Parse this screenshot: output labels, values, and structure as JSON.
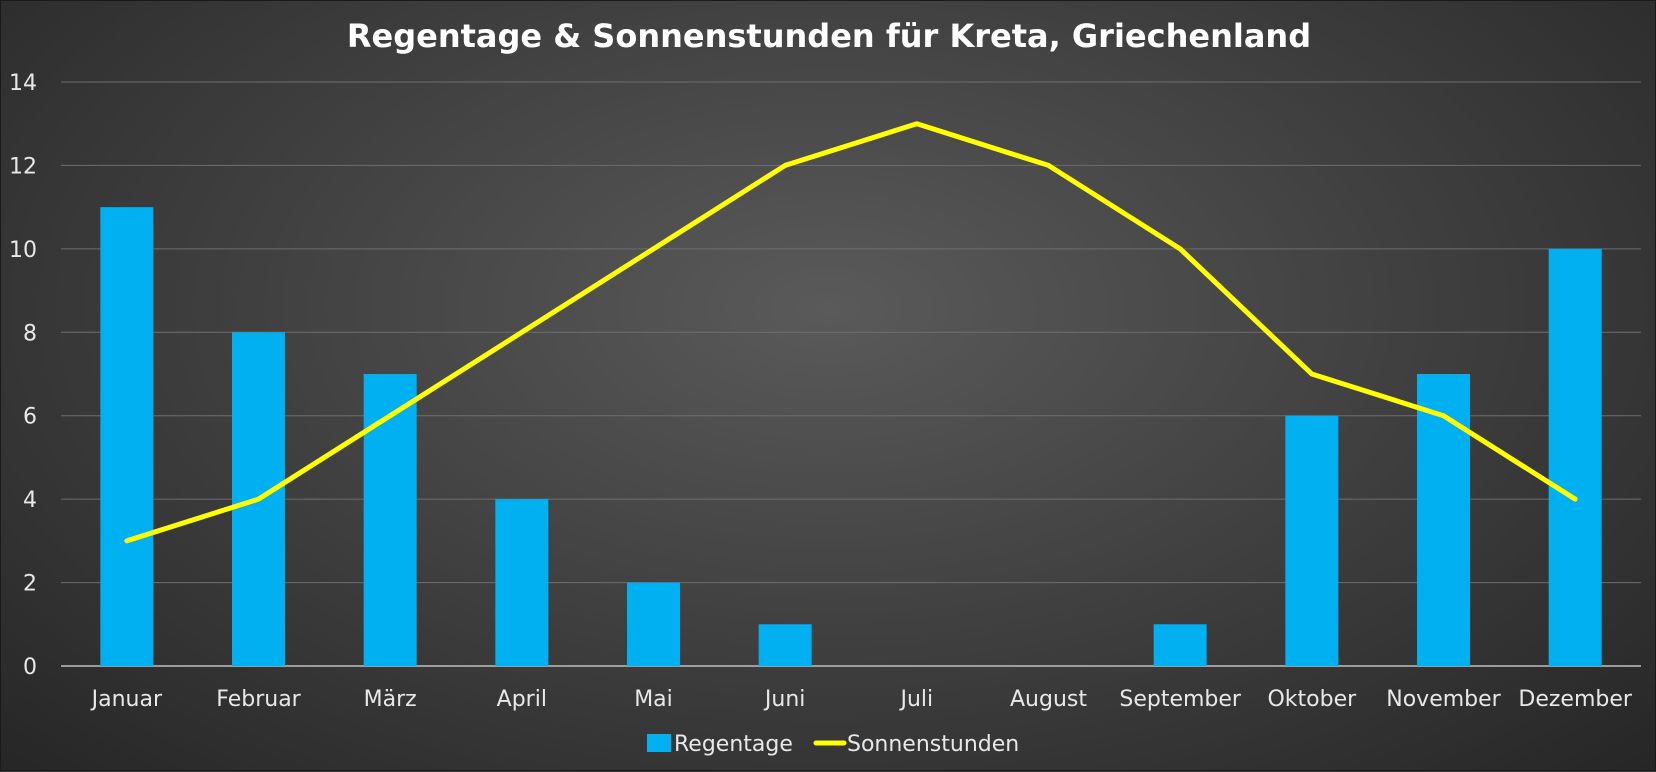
{
  "chart_data": {
    "type": "bar",
    "title": "Regentage & Sonnenstunden für Kreta, Griechenland",
    "categories": [
      "Januar",
      "Februar",
      "März",
      "April",
      "Mai",
      "Juni",
      "Juli",
      "August",
      "September",
      "Oktober",
      "November",
      "Dezember"
    ],
    "series": [
      {
        "name": "Regentage",
        "type": "bar",
        "color": "#00b0f0",
        "values": [
          11,
          8,
          7,
          4,
          2,
          1,
          0,
          0,
          1,
          6,
          7,
          10
        ]
      },
      {
        "name": "Sonnenstunden",
        "type": "line",
        "color": "#ffff00",
        "values": [
          3,
          4,
          6,
          8,
          10,
          12,
          13,
          12,
          10,
          7,
          6,
          4
        ]
      }
    ],
    "ylim": [
      0,
      14
    ],
    "yticks": [
      0,
      2,
      4,
      6,
      8,
      10,
      12,
      14
    ],
    "grid": true,
    "legend": "bottom"
  }
}
